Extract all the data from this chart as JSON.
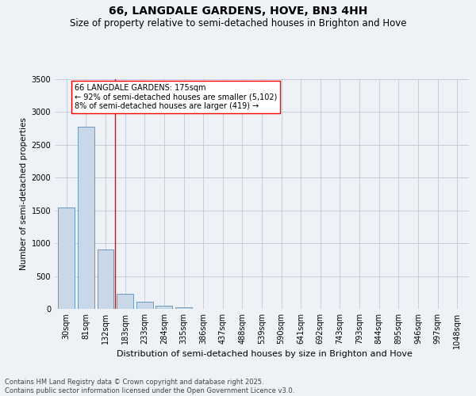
{
  "title": "66, LANGDALE GARDENS, HOVE, BN3 4HH",
  "subtitle": "Size of property relative to semi-detached houses in Brighton and Hove",
  "xlabel": "Distribution of semi-detached houses by size in Brighton and Hove",
  "ylabel": "Number of semi-detached properties",
  "categories": [
    "30sqm",
    "81sqm",
    "132sqm",
    "183sqm",
    "233sqm",
    "284sqm",
    "335sqm",
    "386sqm",
    "437sqm",
    "488sqm",
    "539sqm",
    "590sqm",
    "641sqm",
    "692sqm",
    "743sqm",
    "793sqm",
    "844sqm",
    "895sqm",
    "946sqm",
    "997sqm",
    "1048sqm"
  ],
  "values": [
    1540,
    2780,
    900,
    235,
    105,
    45,
    20,
    5,
    2,
    1,
    0,
    0,
    0,
    0,
    0,
    0,
    0,
    0,
    0,
    0,
    0
  ],
  "bar_color": "#c8d8e8",
  "bar_edge_color": "#5a8db5",
  "grid_color": "#c0c8d8",
  "background_color": "#eef2f7",
  "vline_x_index": 2.5,
  "vline_color": "red",
  "annotation_text": "66 LANGDALE GARDENS: 175sqm\n← 92% of semi-detached houses are smaller (5,102)\n8% of semi-detached houses are larger (419) →",
  "annotation_box_color": "white",
  "annotation_box_edge": "red",
  "ylim": [
    0,
    3500
  ],
  "yticks": [
    0,
    500,
    1000,
    1500,
    2000,
    2500,
    3000,
    3500
  ],
  "footer": "Contains HM Land Registry data © Crown copyright and database right 2025.\nContains public sector information licensed under the Open Government Licence v3.0.",
  "title_fontsize": 10,
  "subtitle_fontsize": 8.5,
  "xlabel_fontsize": 8,
  "ylabel_fontsize": 7.5,
  "tick_fontsize": 7,
  "footer_fontsize": 6,
  "annotation_fontsize": 7
}
